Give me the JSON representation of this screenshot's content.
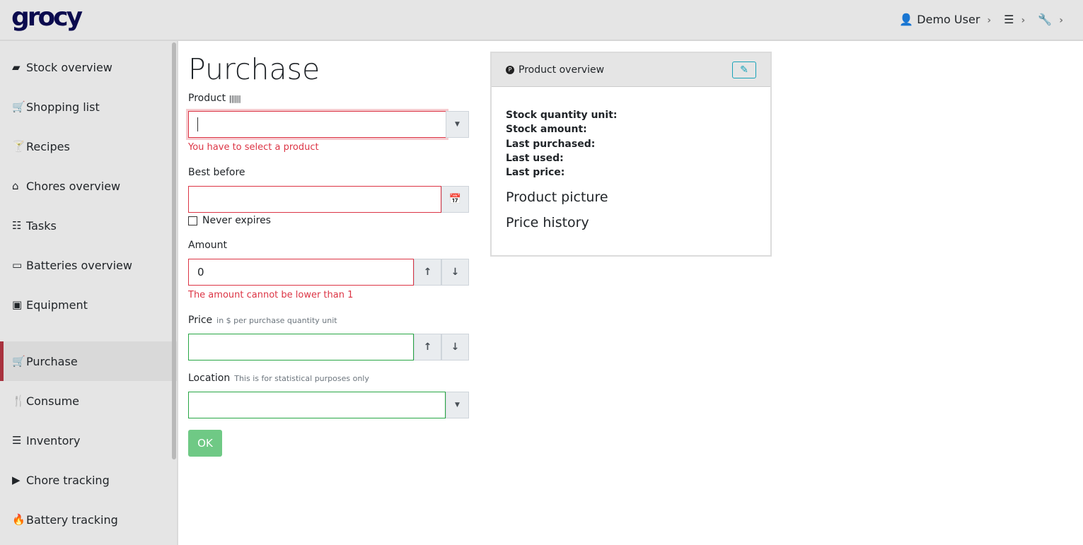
{
  "app": {
    "logo": "grocy"
  },
  "topnav": {
    "user": "Demo User",
    "settings_icon": "sliders-icon",
    "tools_icon": "wrench-icon"
  },
  "sidebar": {
    "items": [
      {
        "label": "Stock overview",
        "icon": "▰"
      },
      {
        "label": "Shopping list",
        "icon": "🛒"
      },
      {
        "label": "Recipes",
        "icon": "🍸"
      },
      {
        "label": "Chores overview",
        "icon": "⌂"
      },
      {
        "label": "Tasks",
        "icon": "☷"
      },
      {
        "label": "Batteries overview",
        "icon": "▭"
      },
      {
        "label": "Equipment",
        "icon": "▣"
      },
      {
        "label": "Purchase",
        "icon": "🛒",
        "active": true
      },
      {
        "label": "Consume",
        "icon": "🍴"
      },
      {
        "label": "Inventory",
        "icon": "☰"
      },
      {
        "label": "Chore tracking",
        "icon": "▶"
      },
      {
        "label": "Battery tracking",
        "icon": "🔥"
      }
    ]
  },
  "page": {
    "title": "Purchase"
  },
  "form": {
    "product": {
      "label": "Product",
      "value": "",
      "error": "You have to select a product"
    },
    "best_before": {
      "label": "Best before",
      "value": "",
      "never_expires": "Never expires",
      "never_expires_checked": false
    },
    "amount": {
      "label": "Amount",
      "value": "0",
      "error": "The amount cannot be lower than 1"
    },
    "price": {
      "label": "Price",
      "hint": "in $ per purchase quantity unit",
      "value": ""
    },
    "location": {
      "label": "Location",
      "hint": "This is for statistical purposes only",
      "value": ""
    },
    "ok": "OK"
  },
  "overview": {
    "title": "Product overview",
    "fields": [
      "Stock quantity unit:",
      "Stock amount:",
      "Last purchased:",
      "Last used:",
      "Last price:"
    ],
    "picture": "Product picture",
    "price_history": "Price history"
  },
  "colors": {
    "error": "#dc3545",
    "valid": "#28a745",
    "ok_button": "#6fc985",
    "logo": "#0b0b4e",
    "active_marker": "#a8323e"
  }
}
